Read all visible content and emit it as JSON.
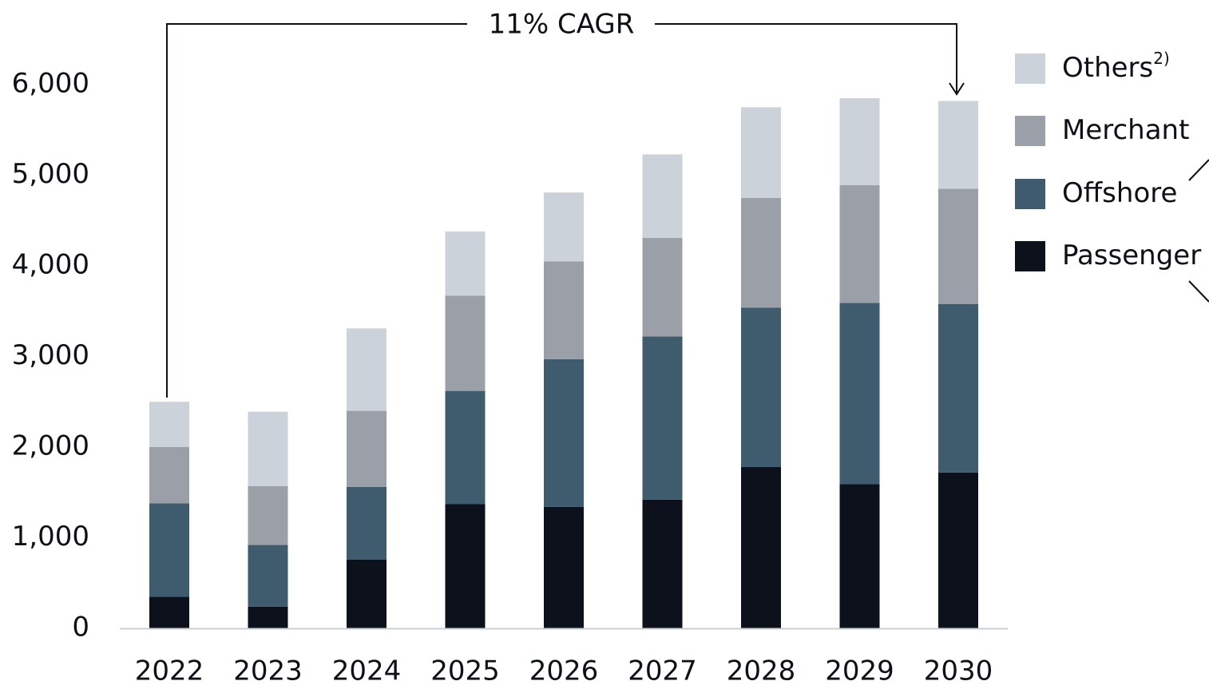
{
  "chart_data": {
    "type": "bar",
    "stacked": true,
    "categories": [
      "2022",
      "2023",
      "2024",
      "2025",
      "2026",
      "2027",
      "2028",
      "2029",
      "2030"
    ],
    "series": [
      {
        "name": "Passenger",
        "color": "#0c111b",
        "values": [
          350,
          240,
          760,
          1370,
          1340,
          1420,
          1780,
          1590,
          1720
        ]
      },
      {
        "name": "Offshore",
        "color": "#3f5c6e",
        "values": [
          1030,
          680,
          800,
          1250,
          1630,
          1800,
          1760,
          2000,
          1860
        ]
      },
      {
        "name": "Merchant",
        "color": "#9b9fa7",
        "values": [
          620,
          650,
          840,
          1050,
          1080,
          1090,
          1210,
          1300,
          1270
        ]
      },
      {
        "name": "Others",
        "color": "#cbd2d9",
        "values": [
          500,
          820,
          910,
          710,
          760,
          920,
          1000,
          960,
          970
        ]
      }
    ],
    "ylim": [
      0,
      6000
    ],
    "yticks": [
      0,
      1000,
      2000,
      3000,
      4000,
      5000,
      6000
    ],
    "ytick_labels": [
      "0",
      "1,000",
      "2,000",
      "3,000",
      "4,000",
      "5,000",
      "6,000"
    ],
    "grid": false,
    "legend": {
      "position": "right",
      "items": [
        {
          "label": "Others",
          "superscript": "2)",
          "color": "#cbd2d9"
        },
        {
          "label": "Merchant",
          "superscript": "",
          "color": "#9b9fa7"
        },
        {
          "label": "Offshore",
          "superscript": "",
          "color": "#3f5c6e"
        },
        {
          "label": "Passenger",
          "superscript": "",
          "color": "#0c111b"
        }
      ]
    },
    "annotation": {
      "text": "11% CAGR",
      "from": "2022",
      "to": "2030"
    }
  }
}
